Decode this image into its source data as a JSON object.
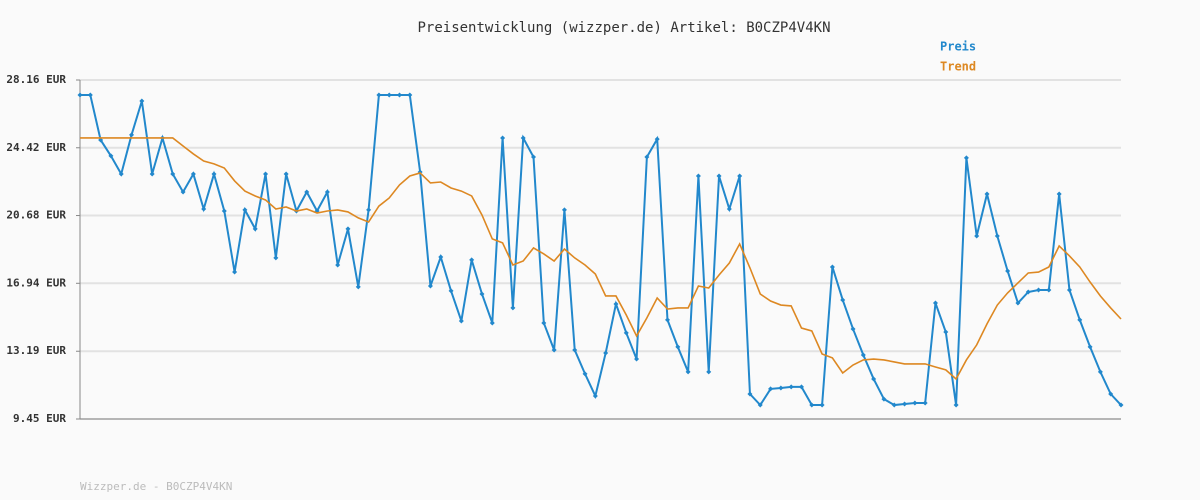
{
  "chart_data": {
    "type": "line",
    "title": "Preisentwicklung (wizzper.de) Artikel: B0CZP4V4KN",
    "footer": "Wizzper.de - B0CZP4V4KN",
    "ylim": [
      9.45,
      28.16
    ],
    "yticks": [
      {
        "value": 9.45,
        "label": "9.45 EUR"
      },
      {
        "value": 13.19,
        "label": "13.19 EUR"
      },
      {
        "value": 16.94,
        "label": "16.94 EUR"
      },
      {
        "value": 20.68,
        "label": "20.68 EUR"
      },
      {
        "value": 24.42,
        "label": "24.42 EUR"
      },
      {
        "value": 28.16,
        "label": "28.16 EUR"
      }
    ],
    "grid": true,
    "legend": "top-right",
    "series": [
      {
        "name": "Preis",
        "color": "#2288cc",
        "markers": true,
        "values": [
          27.33,
          27.33,
          24.85,
          23.97,
          22.97,
          25.13,
          27.0,
          22.97,
          24.96,
          22.97,
          21.98,
          22.97,
          21.04,
          22.97,
          20.93,
          17.56,
          20.99,
          19.94,
          22.97,
          18.34,
          22.97,
          20.93,
          21.98,
          20.93,
          21.98,
          17.95,
          19.94,
          16.74,
          20.99,
          27.33,
          27.33,
          27.33,
          27.33,
          23.08,
          16.79,
          18.39,
          16.52,
          14.86,
          18.23,
          16.35,
          14.75,
          24.96,
          15.58,
          24.96,
          23.91,
          14.75,
          13.26,
          20.99,
          13.26,
          11.94,
          10.72,
          13.09,
          15.8,
          14.2,
          12.76,
          23.91,
          24.9,
          14.92,
          13.43,
          12.05,
          22.86,
          12.05,
          22.86,
          21.04,
          22.86,
          10.83,
          10.22,
          11.11,
          11.16,
          11.22,
          11.22,
          10.22,
          10.22,
          17.84,
          16.02,
          14.42,
          12.98,
          11.66,
          10.55,
          10.22,
          10.28,
          10.33,
          10.33,
          15.85,
          14.25,
          10.22,
          23.86,
          19.55,
          21.87,
          19.55,
          17.62,
          15.85,
          16.46,
          16.57,
          16.57,
          21.87,
          16.57,
          14.92,
          13.43,
          12.05,
          10.83,
          10.22
        ]
      },
      {
        "name": "Trend",
        "color": "#dd8822",
        "markers": false,
        "values": [
          24.96,
          24.96,
          24.96,
          24.96,
          24.96,
          24.96,
          24.96,
          24.96,
          24.96,
          24.96,
          24.52,
          24.08,
          23.69,
          23.53,
          23.3,
          22.59,
          22.03,
          21.76,
          21.54,
          21.04,
          21.15,
          20.93,
          21.04,
          20.82,
          20.93,
          20.99,
          20.88,
          20.55,
          20.32,
          21.2,
          21.65,
          22.37,
          22.86,
          23.03,
          22.48,
          22.53,
          22.2,
          22.03,
          21.76,
          20.71,
          19.39,
          19.17,
          17.95,
          18.17,
          18.89,
          18.56,
          18.17,
          18.83,
          18.34,
          17.95,
          17.45,
          16.24,
          16.24,
          15.19,
          14.03,
          15.03,
          16.13,
          15.52,
          15.58,
          15.58,
          16.79,
          16.68,
          17.4,
          18.06,
          19.11,
          17.79,
          16.35,
          15.96,
          15.74,
          15.69,
          14.47,
          14.31,
          13.04,
          12.82,
          11.99,
          12.43,
          12.71,
          12.76,
          12.71,
          12.6,
          12.49,
          12.49,
          12.49,
          12.32,
          12.16,
          11.66,
          12.71,
          13.54,
          14.7,
          15.74,
          16.41,
          16.96,
          17.51,
          17.56,
          17.84,
          19.0,
          18.45,
          17.84,
          17.01,
          16.24,
          15.58,
          14.97
        ]
      }
    ]
  }
}
